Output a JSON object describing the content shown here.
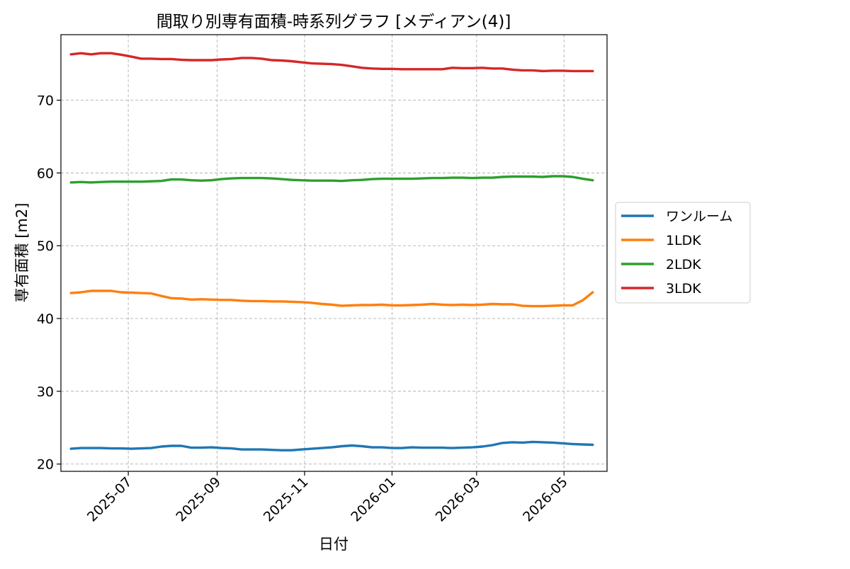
{
  "chart_data": {
    "type": "line",
    "title": "間取り別専有面積-時系列グラフ [メディアン(4)]",
    "xlabel": "日付",
    "ylabel": "専有面積 [m2]",
    "xlim": [
      "2025-05-15",
      "2026-05-31"
    ],
    "ylim": [
      19,
      79
    ],
    "grid": true,
    "legend_position": "right-outside",
    "x_ticks": [
      "2025-07-01",
      "2025-09-01",
      "2025-11-01",
      "2026-01-01",
      "2026-03-01",
      "2026-05-01"
    ],
    "x_tick_labels": [
      "2025-07",
      "2025-09",
      "2025-11",
      "2026-01",
      "2026-03",
      "2026-05"
    ],
    "y_ticks": [
      20,
      30,
      40,
      50,
      60,
      70
    ],
    "y_tick_labels": [
      "20",
      "30",
      "40",
      "50",
      "60",
      "70"
    ],
    "x": [
      "2025-05-22",
      "2025-05-29",
      "2025-06-05",
      "2025-06-12",
      "2025-06-19",
      "2025-06-26",
      "2025-07-03",
      "2025-07-10",
      "2025-07-17",
      "2025-07-24",
      "2025-07-31",
      "2025-08-07",
      "2025-08-14",
      "2025-08-21",
      "2025-08-28",
      "2025-09-04",
      "2025-09-11",
      "2025-09-18",
      "2025-09-25",
      "2025-10-02",
      "2025-10-09",
      "2025-10-16",
      "2025-10-23",
      "2025-10-30",
      "2025-11-06",
      "2025-11-13",
      "2025-11-20",
      "2025-11-27",
      "2025-12-04",
      "2025-12-11",
      "2025-12-18",
      "2025-12-25",
      "2026-01-01",
      "2026-01-08",
      "2026-01-15",
      "2026-01-22",
      "2026-01-29",
      "2026-02-05",
      "2026-02-12",
      "2026-02-19",
      "2026-02-26",
      "2026-03-05",
      "2026-03-12",
      "2026-03-19",
      "2026-03-26",
      "2026-04-02",
      "2026-04-09",
      "2026-04-16",
      "2026-04-23",
      "2026-04-30",
      "2026-05-07",
      "2026-05-14",
      "2026-05-21"
    ],
    "series": [
      {
        "name": "ワンルーム",
        "color": "#1f77b4",
        "values": [
          22.1,
          22.2,
          22.2,
          22.2,
          22.15,
          22.15,
          22.1,
          22.15,
          22.2,
          22.4,
          22.5,
          22.5,
          22.25,
          22.25,
          22.3,
          22.2,
          22.15,
          22.0,
          22.0,
          22.0,
          21.95,
          21.9,
          21.9,
          22.0,
          22.1,
          22.2,
          22.3,
          22.45,
          22.55,
          22.45,
          22.3,
          22.3,
          22.2,
          22.2,
          22.3,
          22.25,
          22.25,
          22.25,
          22.2,
          22.25,
          22.3,
          22.4,
          22.6,
          22.9,
          23.0,
          22.95,
          23.05,
          23.0,
          22.95,
          22.85,
          22.75,
          22.7,
          22.65
        ]
      },
      {
        "name": "1LDK",
        "color": "#ff7f0e",
        "values": [
          43.5,
          43.6,
          43.8,
          43.8,
          43.8,
          43.6,
          43.55,
          43.5,
          43.45,
          43.1,
          42.8,
          42.75,
          42.6,
          42.65,
          42.6,
          42.55,
          42.55,
          42.45,
          42.4,
          42.4,
          42.35,
          42.35,
          42.3,
          42.25,
          42.15,
          42.0,
          41.9,
          41.75,
          41.8,
          41.85,
          41.85,
          41.9,
          41.8,
          41.8,
          41.85,
          41.9,
          42.0,
          41.9,
          41.85,
          41.9,
          41.85,
          41.9,
          42.0,
          41.95,
          41.95,
          41.75,
          41.7,
          41.7,
          41.75,
          41.8,
          41.8,
          42.5,
          43.6
        ]
      },
      {
        "name": "2LDK",
        "color": "#2ca02c",
        "values": [
          58.7,
          58.75,
          58.7,
          58.75,
          58.8,
          58.8,
          58.8,
          58.8,
          58.85,
          58.9,
          59.1,
          59.1,
          59.0,
          58.95,
          59.0,
          59.15,
          59.25,
          59.3,
          59.3,
          59.3,
          59.25,
          59.15,
          59.05,
          59.0,
          58.95,
          58.95,
          58.95,
          58.9,
          59.0,
          59.05,
          59.15,
          59.2,
          59.2,
          59.2,
          59.2,
          59.25,
          59.3,
          59.3,
          59.35,
          59.35,
          59.3,
          59.35,
          59.35,
          59.45,
          59.5,
          59.5,
          59.5,
          59.45,
          59.55,
          59.55,
          59.45,
          59.2,
          59.0
        ]
      },
      {
        "name": "3LDK",
        "color": "#d62728",
        "values": [
          76.3,
          76.45,
          76.3,
          76.45,
          76.45,
          76.25,
          76.0,
          75.7,
          75.7,
          75.65,
          75.65,
          75.55,
          75.5,
          75.5,
          75.5,
          75.6,
          75.65,
          75.8,
          75.8,
          75.7,
          75.5,
          75.45,
          75.35,
          75.2,
          75.05,
          75.0,
          74.95,
          74.85,
          74.65,
          74.45,
          74.35,
          74.3,
          74.3,
          74.25,
          74.25,
          74.25,
          74.25,
          74.25,
          74.45,
          74.4,
          74.4,
          74.45,
          74.35,
          74.35,
          74.2,
          74.1,
          74.1,
          74.0,
          74.05,
          74.05,
          74.0,
          74.0,
          74.0
        ]
      }
    ]
  }
}
